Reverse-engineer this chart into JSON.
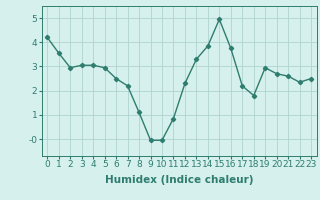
{
  "x": [
    0,
    1,
    2,
    3,
    4,
    5,
    6,
    7,
    8,
    9,
    10,
    11,
    12,
    13,
    14,
    15,
    16,
    17,
    18,
    19,
    20,
    21,
    22,
    23
  ],
  "y": [
    4.2,
    3.55,
    2.95,
    3.05,
    3.05,
    2.95,
    2.5,
    2.2,
    1.1,
    -0.05,
    -0.05,
    0.85,
    2.3,
    3.3,
    3.85,
    4.95,
    3.75,
    2.2,
    1.8,
    2.95,
    2.7,
    2.6,
    2.35,
    2.5
  ],
  "line_color": "#2e7d6e",
  "marker": "D",
  "marker_size": 2.2,
  "background_color": "#d6f0ee",
  "grid_color": "#b0d4cf",
  "xlabel": "Humidex (Indice chaleur)",
  "ylim": [
    -0.7,
    5.5
  ],
  "xlim": [
    -0.5,
    23.5
  ],
  "yticks": [
    0,
    1,
    2,
    3,
    4,
    5
  ],
  "ytick_labels": [
    "-0",
    "1",
    "2",
    "3",
    "4",
    "5"
  ],
  "xticks": [
    0,
    1,
    2,
    3,
    4,
    5,
    6,
    7,
    8,
    9,
    10,
    11,
    12,
    13,
    14,
    15,
    16,
    17,
    18,
    19,
    20,
    21,
    22,
    23
  ],
  "xlabel_fontsize": 7.5,
  "tick_fontsize": 6.5,
  "line_width": 1.0
}
